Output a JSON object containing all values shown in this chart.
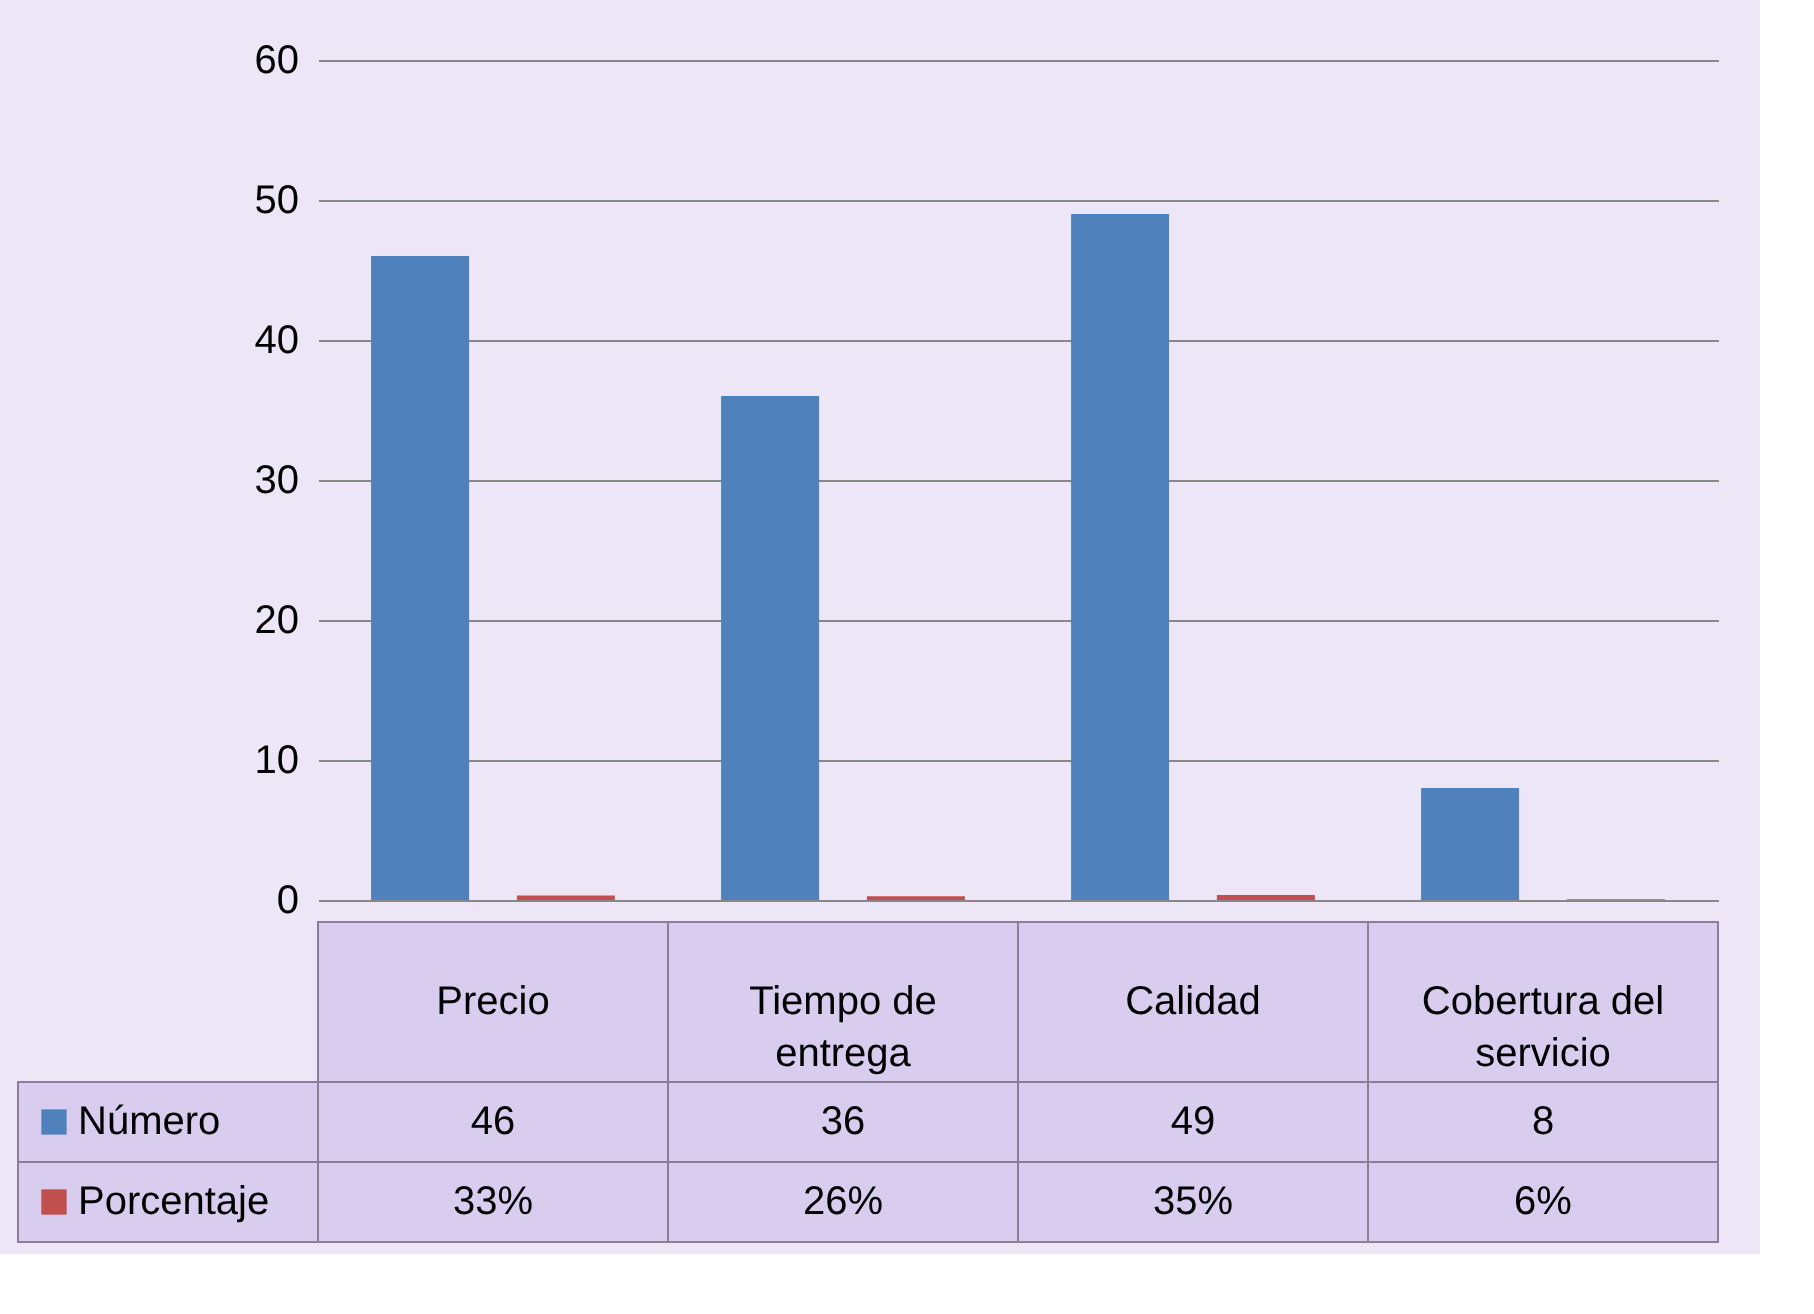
{
  "chart_data": {
    "type": "bar",
    "categories": [
      "Precio",
      "Tiempo de entrega",
      "Calidad",
      "Cobertura del servicio"
    ],
    "series": [
      {
        "name": "Número",
        "color": "#4f81bd",
        "values": [
          46,
          36,
          49,
          8
        ],
        "value_labels": [
          "46",
          "36",
          "49",
          "8"
        ]
      },
      {
        "name": "Porcentaje",
        "color": "#c0504d",
        "values": [
          0.33,
          0.26,
          0.35,
          0.06
        ],
        "value_labels": [
          "33%",
          "26%",
          "35%",
          "6%"
        ]
      }
    ],
    "ylim": [
      0,
      60
    ],
    "yticks": [
      0,
      10,
      20,
      30,
      40,
      50,
      60
    ],
    "grid": "y",
    "legend": "bottom"
  }
}
